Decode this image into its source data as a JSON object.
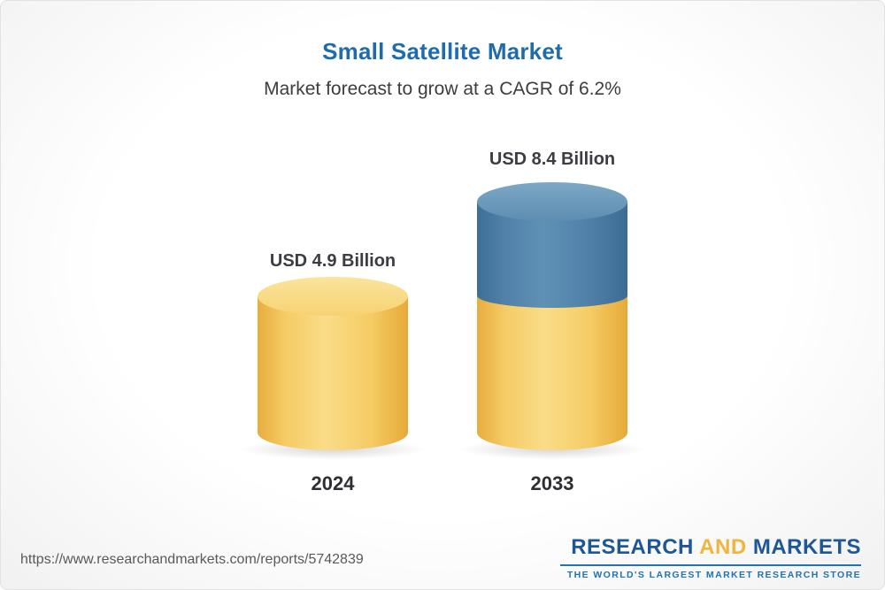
{
  "chart_data": {
    "type": "bar",
    "title": "Small Satellite Market",
    "subtitle": "Market forecast to grow at a CAGR of 6.2%",
    "categories": [
      "2024",
      "2033"
    ],
    "values": [
      4.9,
      8.4
    ],
    "value_labels": [
      "USD 4.9 Billion",
      "USD 8.4 Billion"
    ],
    "unit": "USD Billion",
    "cagr_percent": 6.2,
    "legend_position": "none",
    "grid": false,
    "colors": {
      "bar_2024": "#F5CB63",
      "bar_2033_bottom": "#F5CB63",
      "bar_2033_top": "#4F7FA7",
      "title_accent": "#1E6CAD"
    }
  },
  "footer": {
    "url": "https://www.researchandmarkets.com/reports/5742839",
    "logo": {
      "part1": "RESEARCH",
      "part2": "AND",
      "part3": "MARKETS",
      "tagline": "THE WORLD'S LARGEST MARKET RESEARCH STORE"
    }
  }
}
